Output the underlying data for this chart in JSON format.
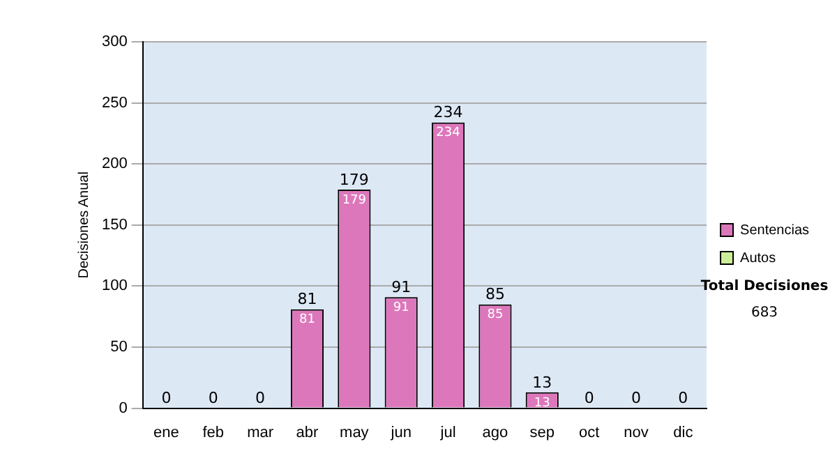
{
  "chart_data": {
    "type": "bar",
    "stacked": true,
    "ylabel": "Decisiones Anual",
    "categories": [
      "ene",
      "feb",
      "mar",
      "abr",
      "may",
      "jun",
      "jul",
      "ago",
      "sep",
      "oct",
      "nov",
      "dic"
    ],
    "series": [
      {
        "name": "Sentencias",
        "color": "#dd77bb",
        "values": [
          0,
          0,
          0,
          81,
          179,
          91,
          234,
          85,
          13,
          0,
          0,
          0
        ],
        "value_labels": [
          null,
          null,
          null,
          "81",
          "179",
          "91",
          "234",
          "85",
          "13",
          null,
          null,
          null
        ]
      },
      {
        "name": "Autos",
        "color": "#ccee99",
        "values": [
          0,
          0,
          0,
          0,
          0,
          0,
          0,
          0,
          0,
          0,
          0,
          0
        ]
      }
    ],
    "totals": [
      "0",
      "0",
      "0",
      "81",
      "179",
      "91",
      "234",
      "85",
      "13",
      "0",
      "0",
      "0"
    ],
    "ylim": [
      0,
      300
    ],
    "yticks": [
      0,
      50,
      100,
      150,
      200,
      250,
      300
    ],
    "grid": "y",
    "legend": "right",
    "annotations": [
      "Total Decisiones",
      "683"
    ]
  }
}
